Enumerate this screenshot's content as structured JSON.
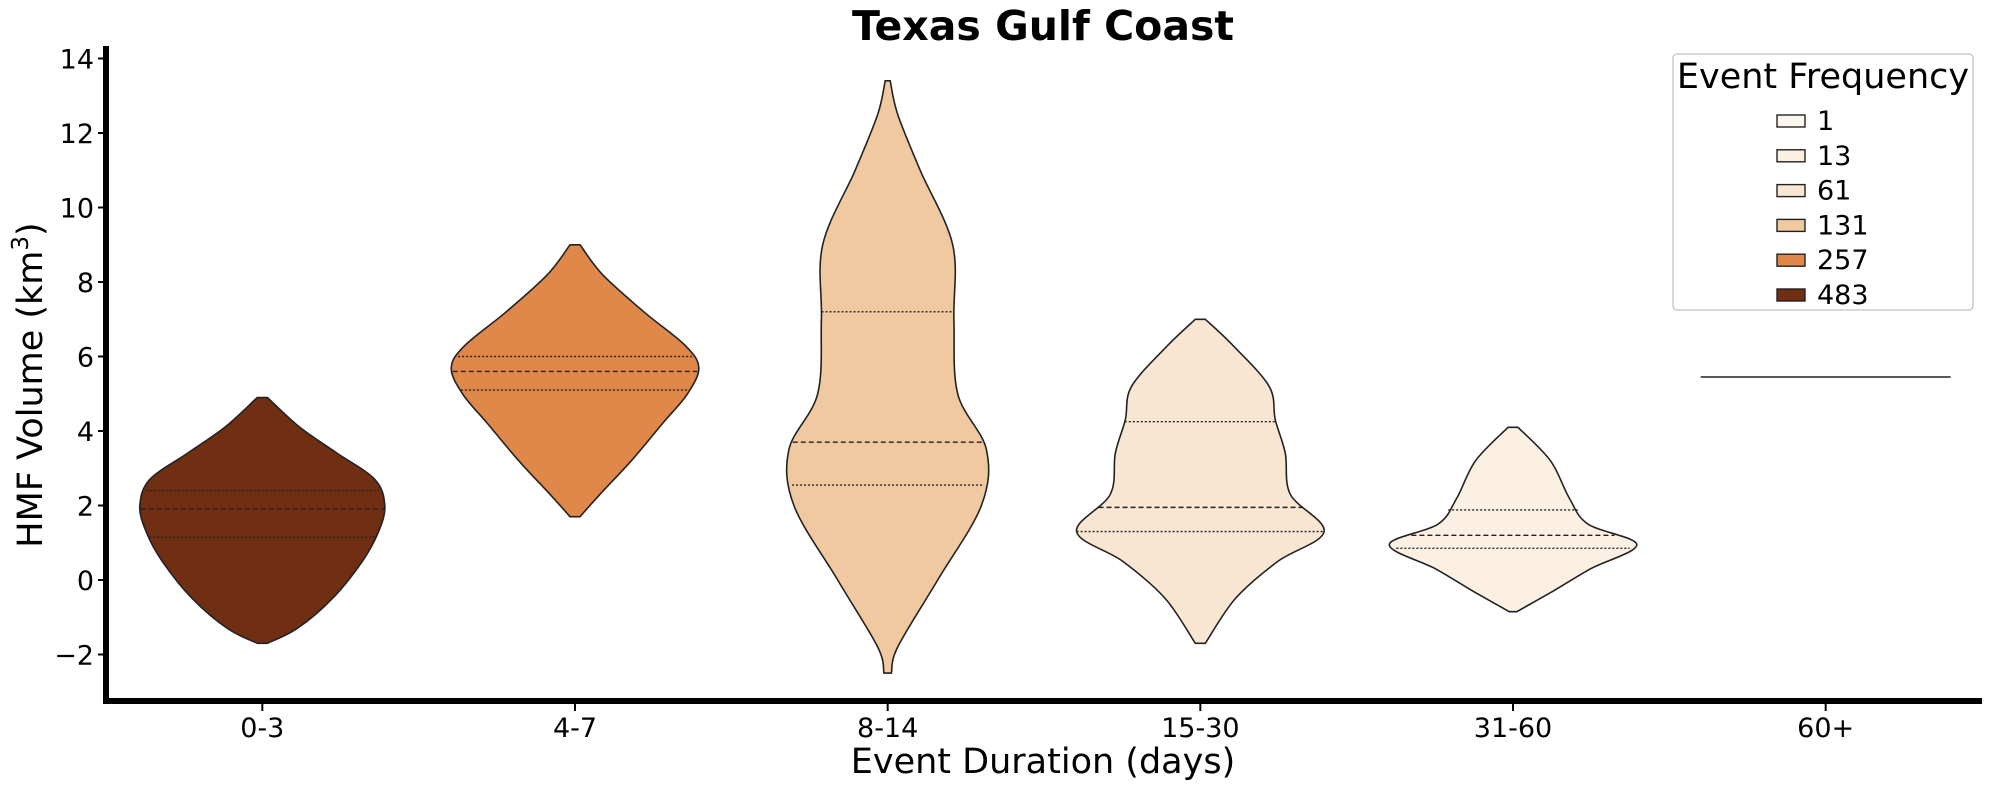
{
  "chart_data": {
    "type": "violin",
    "title": "Texas Gulf Coast",
    "xlabel": "Event Duration (days)",
    "ylabel_main": "HMF Volume (km",
    "ylabel_sup": "3",
    "ylabel_close": ")",
    "ylim": [
      -3.3,
      14.2
    ],
    "yticks": [
      -2,
      0,
      2,
      4,
      6,
      8,
      10,
      12,
      14
    ],
    "ytick_labels": [
      "−2",
      "0",
      "2",
      "4",
      "6",
      "8",
      "10",
      "12",
      "14"
    ],
    "categories": [
      "0-3",
      "4-7",
      "8-14",
      "15-30",
      "31-60",
      "60+"
    ],
    "grid": false,
    "legend": {
      "title": "Event Frequency",
      "placement": "top-right",
      "entries": [
        {
          "label": "1",
          "color": "#fdf6ee"
        },
        {
          "label": "13",
          "color": "#fcf0e3"
        },
        {
          "label": "61",
          "color": "#f8e6d3"
        },
        {
          "label": "131",
          "color": "#f1c9a1"
        },
        {
          "label": "257",
          "color": "#e0874a"
        },
        {
          "label": "483",
          "color": "#702e12"
        }
      ]
    },
    "violins": [
      {
        "category": "0-3",
        "frequency": 483,
        "color": "#702e12",
        "profile": [
          [
            -1.7,
            0.04
          ],
          [
            -1.3,
            0.28
          ],
          [
            -0.5,
            0.56
          ],
          [
            0.5,
            0.8
          ],
          [
            1.3,
            0.93
          ],
          [
            2.0,
            0.98
          ],
          [
            2.7,
            0.9
          ],
          [
            3.4,
            0.6
          ],
          [
            4.1,
            0.3
          ],
          [
            4.9,
            0.04
          ]
        ],
        "quartiles": [
          1.15,
          1.9,
          2.4
        ]
      },
      {
        "category": "4-7",
        "frequency": 257,
        "color": "#e0874a",
        "profile": [
          [
            1.7,
            0.04
          ],
          [
            2.3,
            0.2
          ],
          [
            3.2,
            0.45
          ],
          [
            4.2,
            0.7
          ],
          [
            5.0,
            0.9
          ],
          [
            5.7,
            0.99
          ],
          [
            6.3,
            0.88
          ],
          [
            7.2,
            0.55
          ],
          [
            8.2,
            0.22
          ],
          [
            9.0,
            0.04
          ]
        ],
        "quartiles": [
          5.1,
          5.6,
          6.0
        ]
      },
      {
        "category": "8-14",
        "frequency": 131,
        "color": "#f1c9a1",
        "profile": [
          [
            -2.5,
            0.03
          ],
          [
            -1.8,
            0.08
          ],
          [
            0.0,
            0.4
          ],
          [
            2.0,
            0.75
          ],
          [
            3.5,
            0.79
          ],
          [
            5.0,
            0.56
          ],
          [
            7.0,
            0.53
          ],
          [
            9.0,
            0.52
          ],
          [
            11.0,
            0.26
          ],
          [
            12.5,
            0.08
          ],
          [
            13.4,
            0.02
          ]
        ],
        "quartiles": [
          2.55,
          3.7,
          7.2
        ]
      },
      {
        "category": "15-30",
        "frequency": 61,
        "color": "#f8e6d3",
        "profile": [
          [
            -1.7,
            0.04
          ],
          [
            -0.5,
            0.28
          ],
          [
            0.5,
            0.62
          ],
          [
            1.3,
            0.99
          ],
          [
            2.3,
            0.72
          ],
          [
            3.4,
            0.68
          ],
          [
            4.3,
            0.6
          ],
          [
            5.2,
            0.55
          ],
          [
            6.3,
            0.26
          ],
          [
            7.0,
            0.04
          ]
        ],
        "quartiles": [
          1.3,
          1.95,
          4.25
        ]
      },
      {
        "category": "31-60",
        "frequency": 13,
        "color": "#fcf0e3",
        "profile": [
          [
            -0.85,
            0.03
          ],
          [
            -0.3,
            0.32
          ],
          [
            0.3,
            0.62
          ],
          [
            0.95,
            0.99
          ],
          [
            1.5,
            0.6
          ],
          [
            2.2,
            0.45
          ],
          [
            3.2,
            0.3
          ],
          [
            4.1,
            0.04
          ]
        ],
        "quartiles": [
          0.85,
          1.2,
          1.88
        ]
      },
      {
        "category": "60+",
        "frequency": 1,
        "color": "#fdf6ee",
        "single_value": 5.45
      }
    ]
  }
}
